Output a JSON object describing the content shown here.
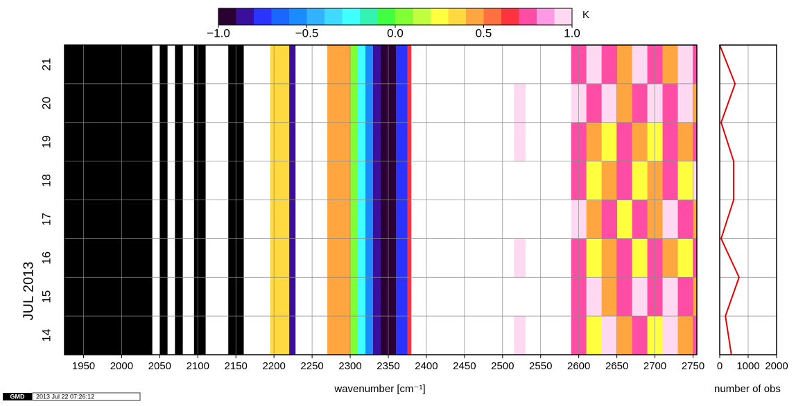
{
  "chart_data": [
    {
      "type": "heatmap",
      "xlabel": "wavenumber [cm⁻¹]",
      "ylabel": "JUL 2013",
      "colorbar_label": "K",
      "clim": [
        -1.0,
        1.0
      ],
      "colorbar_ticks": [
        {
          "value": -1,
          "label": "−1.0"
        },
        {
          "value": -0.5,
          "label": "−0.5"
        },
        {
          "value": 0,
          "label": "0.0"
        },
        {
          "value": 0.5,
          "label": "0.5"
        },
        {
          "value": 1,
          "label": "1.0"
        }
      ],
      "colors": [
        "#2b0033",
        "#3a0f9e",
        "#2a33ff",
        "#1a66ff",
        "#1a8cff",
        "#33b2ff",
        "#40d9ff",
        "#40ffff",
        "#33f2b2",
        "#40ff40",
        "#80ff33",
        "#c0ff40",
        "#ffff40",
        "#ffd940",
        "#ffa640",
        "#ff7040",
        "#ff3340",
        "#ff4da6",
        "#ff99e6",
        "#ffd9f2"
      ],
      "under_color": "#000000",
      "xlim": [
        1925,
        2755
      ],
      "xticks": [
        1950,
        2000,
        2050,
        2100,
        2150,
        2200,
        2250,
        2300,
        2350,
        2400,
        2450,
        2500,
        2550,
        2600,
        2650,
        2700,
        2750
      ],
      "ylim": [
        14,
        22
      ],
      "yticks": [
        {
          "value": 14.5,
          "label": "14"
        },
        {
          "value": 15.5,
          "label": "15"
        },
        {
          "value": 16.5,
          "label": "16"
        },
        {
          "value": 17.5,
          "label": "17"
        },
        {
          "value": 18.5,
          "label": "18"
        },
        {
          "value": 19.5,
          "label": "19"
        },
        {
          "value": 20.5,
          "label": "20"
        },
        {
          "value": 21.5,
          "label": "21"
        }
      ],
      "ygrid": [
        15,
        16,
        17,
        18,
        19,
        20,
        21
      ],
      "grid": true,
      "x_edges": [
        1925,
        2030,
        2040,
        2050,
        2060,
        2070,
        2080,
        2095,
        2110,
        2140,
        2160,
        2195,
        2220,
        2228,
        2270,
        2300,
        2310,
        2320,
        2330,
        2340,
        2360,
        2375,
        2380,
        2515,
        2530,
        2590,
        2610,
        2630,
        2650,
        2670,
        2690,
        2710,
        2730,
        2750,
        2755
      ],
      "y": [
        14,
        15,
        16,
        17,
        18,
        19,
        20,
        21
      ],
      "values": [
        [
          -1.5,
          -1.5,
          null,
          -1.5,
          null,
          -1.5,
          null,
          -1.5,
          null,
          -1.5,
          null,
          0.3,
          -0.8,
          null,
          0.45,
          0.0,
          -0.3,
          -0.6,
          -0.8,
          -0.9,
          -0.75,
          0.6,
          null,
          0.9,
          null,
          0.7,
          0.2,
          0.9,
          0.4,
          0.7,
          0.2,
          0.9,
          0.4,
          0.7
        ],
        [
          -1.5,
          -1.5,
          null,
          -1.5,
          null,
          -1.5,
          null,
          -1.5,
          null,
          -1.5,
          null,
          0.3,
          -0.8,
          null,
          0.45,
          0.0,
          -0.3,
          -0.6,
          -0.8,
          -0.9,
          -0.75,
          0.6,
          null,
          null,
          null,
          0.7,
          0.9,
          0.4,
          0.7,
          0.9,
          0.7,
          0.9,
          0.7,
          0.4
        ],
        [
          -1.5,
          -1.5,
          null,
          -1.5,
          null,
          -1.5,
          null,
          -1.5,
          null,
          -1.5,
          null,
          0.3,
          -0.8,
          null,
          0.45,
          0.0,
          -0.3,
          -0.6,
          -0.8,
          -0.9,
          -0.75,
          0.6,
          null,
          0.9,
          null,
          0.7,
          0.2,
          0.4,
          0.7,
          0.2,
          0.7,
          0.4,
          0.2,
          0.7
        ],
        [
          -1.5,
          -1.5,
          null,
          -1.5,
          null,
          -1.5,
          null,
          -1.5,
          null,
          -1.5,
          null,
          0.3,
          -0.8,
          null,
          0.45,
          0.0,
          -0.3,
          -0.6,
          -0.8,
          -0.9,
          -0.75,
          0.6,
          null,
          null,
          null,
          0.9,
          0.4,
          0.7,
          0.2,
          0.7,
          0.4,
          0.9,
          0.7,
          0.4
        ],
        [
          -1.5,
          -1.5,
          null,
          -1.5,
          null,
          -1.5,
          null,
          -1.5,
          null,
          -1.5,
          null,
          0.3,
          -0.8,
          null,
          0.45,
          0.0,
          -0.3,
          -0.6,
          -0.8,
          -0.9,
          -0.75,
          0.6,
          null,
          null,
          null,
          0.7,
          0.2,
          0.4,
          0.7,
          0.2,
          0.4,
          0.7,
          0.2,
          0.9
        ],
        [
          -1.5,
          -1.5,
          null,
          -1.5,
          null,
          -1.5,
          null,
          -1.5,
          null,
          -1.5,
          null,
          0.3,
          -0.8,
          null,
          0.45,
          0.0,
          -0.3,
          -0.6,
          -0.8,
          -0.9,
          -0.75,
          0.6,
          null,
          0.9,
          null,
          0.7,
          0.4,
          0.2,
          0.7,
          0.4,
          0.2,
          0.7,
          0.4,
          0.7
        ],
        [
          -1.5,
          -1.5,
          null,
          -1.5,
          null,
          -1.5,
          null,
          -1.5,
          null,
          -1.5,
          null,
          0.3,
          -0.8,
          null,
          0.45,
          0.0,
          -0.3,
          -0.6,
          -0.8,
          -0.9,
          -0.75,
          0.6,
          null,
          0.9,
          null,
          0.9,
          0.7,
          0.9,
          0.4,
          0.7,
          0.9,
          0.7,
          0.9,
          0.4
        ],
        [
          -1.5,
          -1.5,
          null,
          -1.5,
          null,
          -1.5,
          null,
          -1.5,
          null,
          -1.5,
          null,
          0.3,
          -0.8,
          null,
          0.45,
          0.0,
          -0.3,
          -0.6,
          -0.8,
          -0.9,
          -0.75,
          0.6,
          null,
          null,
          null,
          0.7,
          0.9,
          0.7,
          0.4,
          0.9,
          0.7,
          0.4,
          0.9,
          0.7
        ]
      ],
      "logo": "GMD",
      "timestamp": "2013 Jul 22 07:26:12"
    },
    {
      "type": "line",
      "xlabel": "number of obs",
      "xlim": [
        0,
        2000
      ],
      "xticks": [
        0,
        1000,
        2000
      ],
      "ylim": [
        14,
        22
      ],
      "ygrid": [
        15,
        16,
        17,
        18,
        19,
        20,
        21
      ],
      "grid": true,
      "color": "#e60000",
      "y": [
        22,
        21,
        20,
        19,
        18,
        17,
        16,
        15,
        14
      ],
      "values": [
        0,
        540,
        50,
        490,
        490,
        50,
        680,
        200,
        410
      ]
    }
  ]
}
